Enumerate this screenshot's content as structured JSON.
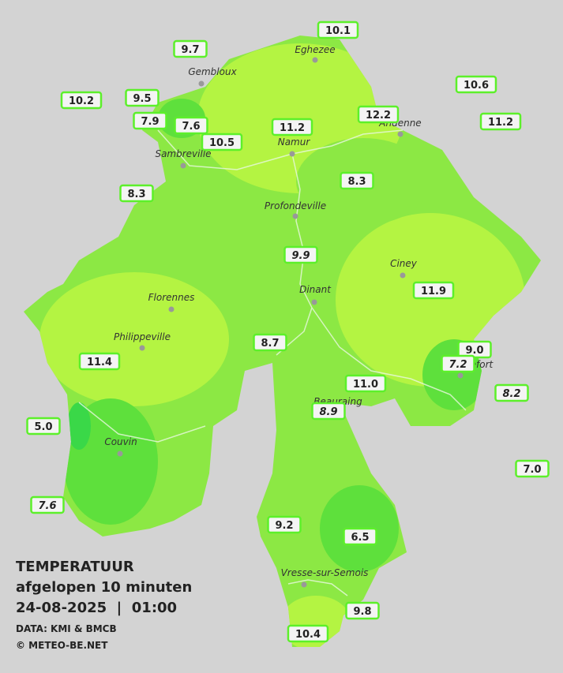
{
  "legend": {
    "title": "TEMPERATUUR",
    "subtitle": "afgelopen 10 minuten",
    "datetime": "24-08-2025  |  01:00",
    "source": "DATA: KMI & BMCB",
    "copyright": "© METEO-BE.NET"
  },
  "towns": [
    "Eghezee",
    "Gembloux",
    "Andenne",
    "Namur",
    "Sambreville",
    "Profondeville",
    "Ciney",
    "Dinant",
    "Florennes",
    "Philippeville",
    "Rochefort",
    "Beauraing",
    "Couvin",
    "Vresse-sur-Semois"
  ],
  "stations": [
    "10.1",
    "9.7",
    "10.6",
    "10.2",
    "9.5",
    "7.9",
    "7.6",
    "12.2",
    "11.2",
    "11.2",
    "10.5",
    "8.3",
    "8.3",
    "9.9",
    "11.9",
    "8.7",
    "11.4",
    "9.0",
    "7.2",
    "11.0",
    "8.2",
    "8.9",
    "5.0",
    "7.0",
    "7.6",
    "9.2",
    "6.5",
    "9.8",
    "10.4"
  ]
}
